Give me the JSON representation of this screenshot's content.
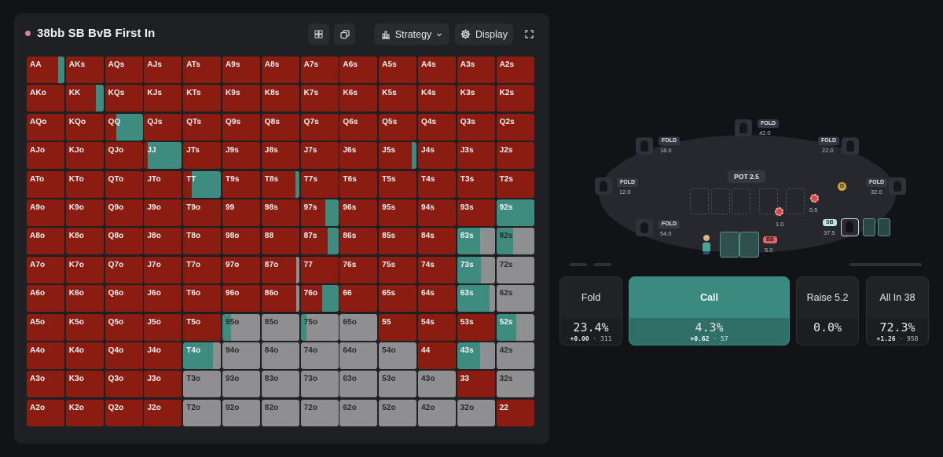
{
  "header": {
    "title": "38bb SB BvB First In",
    "strategy_label": "Strategy",
    "display_label": "Display"
  },
  "colors": {
    "fold": "#8b1c12",
    "call": "#3e8c7f",
    "raise": "#8f8f91",
    "allin": "#8b1c12"
  },
  "grid": {
    "labels": [
      [
        "AA",
        "AKs",
        "AQs",
        "AJs",
        "ATs",
        "A9s",
        "A8s",
        "A7s",
        "A6s",
        "A5s",
        "A4s",
        "A3s",
        "A2s"
      ],
      [
        "AKo",
        "KK",
        "KQs",
        "KJs",
        "KTs",
        "K9s",
        "K8s",
        "K7s",
        "K6s",
        "K5s",
        "K4s",
        "K3s",
        "K2s"
      ],
      [
        "AQo",
        "KQo",
        "QQ",
        "QJs",
        "QTs",
        "Q9s",
        "Q8s",
        "Q7s",
        "Q6s",
        "Q5s",
        "Q4s",
        "Q3s",
        "Q2s"
      ],
      [
        "AJo",
        "KJo",
        "QJo",
        "JJ",
        "JTs",
        "J9s",
        "J8s",
        "J7s",
        "J6s",
        "J5s",
        "J4s",
        "J3s",
        "J2s"
      ],
      [
        "ATo",
        "KTo",
        "QTo",
        "JTo",
        "TT",
        "T9s",
        "T8s",
        "T7s",
        "T6s",
        "T5s",
        "T4s",
        "T3s",
        "T2s"
      ],
      [
        "A9o",
        "K9o",
        "Q9o",
        "J9o",
        "T9o",
        "99",
        "98s",
        "97s",
        "96s",
        "95s",
        "94s",
        "93s",
        "92s"
      ],
      [
        "A8o",
        "K8o",
        "Q8o",
        "J8o",
        "T8o",
        "98o",
        "88",
        "87s",
        "86s",
        "85s",
        "84s",
        "83s",
        "82s"
      ],
      [
        "A7o",
        "K7o",
        "Q7o",
        "J7o",
        "T7o",
        "97o",
        "87o",
        "77",
        "76s",
        "75s",
        "74s",
        "73s",
        "72s"
      ],
      [
        "A6o",
        "K6o",
        "Q6o",
        "J6o",
        "T6o",
        "96o",
        "86o",
        "76o",
        "66",
        "65s",
        "64s",
        "63s",
        "62s"
      ],
      [
        "A5o",
        "K5o",
        "Q5o",
        "J5o",
        "T5o",
        "95o",
        "85o",
        "75o",
        "65o",
        "55",
        "54s",
        "53s",
        "52s"
      ],
      [
        "A4o",
        "K4o",
        "Q4o",
        "J4o",
        "T4o",
        "94o",
        "84o",
        "74o",
        "64o",
        "54o",
        "44",
        "43s",
        "42s"
      ],
      [
        "A3o",
        "K3o",
        "Q3o",
        "J3o",
        "T3o",
        "93o",
        "83o",
        "73o",
        "63o",
        "53o",
        "43o",
        "33",
        "32s"
      ],
      [
        "A2o",
        "K2o",
        "Q2o",
        "J2o",
        "T2o",
        "92o",
        "82o",
        "72o",
        "62o",
        "52o",
        "42o",
        "32o",
        "22"
      ]
    ],
    "mixes": {
      "AA": {
        "allin": 0.84,
        "call": 0.16
      },
      "KK": {
        "allin": 0.8,
        "call": 0.2
      },
      "QQ": {
        "allin": 0.3,
        "call": 0.7
      },
      "JJ": {
        "allin": 0.1,
        "call": 0.9
      },
      "TT": {
        "allin": 0.22,
        "call": 0.78
      },
      "99": {
        "allin": 1.0
      },
      "88": {
        "allin": 1.0
      },
      "77": {
        "allin": 1.0
      },
      "66": {
        "allin": 1.0
      },
      "55": {
        "allin": 1.0
      },
      "44": {
        "allin": 1.0
      },
      "33": {
        "allin": 1.0
      },
      "22": {
        "allin": 1.0
      },
      "J5s": {
        "allin": 0.88,
        "call": 0.12
      },
      "T8s": {
        "allin": 0.9,
        "call": 0.1
      },
      "97s": {
        "allin": 0.66,
        "call": 0.34
      },
      "92s": {
        "call": 1.0
      },
      "87s": {
        "allin": 0.72,
        "call": 0.28
      },
      "83s": {
        "call": 0.6,
        "raise": 0.4
      },
      "82s": {
        "call": 0.45,
        "raise": 0.55
      },
      "87o": {
        "allin": 0.92,
        "raise": 0.08
      },
      "73s": {
        "call": 0.62,
        "raise": 0.38
      },
      "72s": {
        "raise": 1.0
      },
      "86o": {
        "allin": 0.92,
        "raise": 0.08
      },
      "76o": {
        "allin": 0.58,
        "call": 0.42
      },
      "63s": {
        "call": 0.85,
        "raise": 0.15
      },
      "62s": {
        "raise": 1.0
      },
      "95o": {
        "call": 0.22,
        "raise": 0.78
      },
      "85o": {
        "raise": 1.0
      },
      "75o": {
        "call": 0.16,
        "raise": 0.84
      },
      "65o": {
        "raise": 1.0
      },
      "52s": {
        "call": 0.52,
        "raise": 0.48
      },
      "T4o": {
        "call": 0.78,
        "raise": 0.22
      },
      "94o": {
        "raise": 1.0
      },
      "84o": {
        "raise": 1.0
      },
      "74o": {
        "raise": 1.0
      },
      "64o": {
        "raise": 1.0
      },
      "54o": {
        "raise": 1.0
      },
      "43s": {
        "call": 0.6,
        "raise": 0.4
      },
      "42s": {
        "raise": 1.0
      },
      "T3o": {
        "raise": 1.0
      },
      "93o": {
        "raise": 1.0
      },
      "83o": {
        "raise": 1.0
      },
      "73o": {
        "raise": 1.0
      },
      "63o": {
        "raise": 1.0
      },
      "53o": {
        "raise": 1.0
      },
      "43o": {
        "raise": 1.0
      },
      "32s": {
        "raise": 1.0
      },
      "T2o": {
        "raise": 1.0
      },
      "92o": {
        "raise": 1.0
      },
      "82o": {
        "raise": 1.0
      },
      "72o": {
        "raise": 1.0
      },
      "62o": {
        "raise": 1.0
      },
      "52o": {
        "raise": 1.0
      },
      "42o": {
        "raise": 1.0
      },
      "32o": {
        "raise": 1.0
      }
    }
  },
  "table": {
    "pot_label": "POT 2.5",
    "seats": [
      {
        "name": "fold-seat-1",
        "tag": "FOLD",
        "stack": "18.0"
      },
      {
        "name": "fold-seat-2",
        "tag": "FOLD",
        "stack": "42.0"
      },
      {
        "name": "fold-seat-3",
        "tag": "FOLD",
        "stack": "22.0"
      },
      {
        "name": "fold-seat-4",
        "tag": "FOLD",
        "stack": "12.0"
      },
      {
        "name": "fold-seat-5",
        "tag": "FOLD",
        "stack": "32.0"
      },
      {
        "name": "fold-seat-6",
        "tag": "FOLD",
        "stack": "54.0"
      }
    ],
    "bb_badge": "BB",
    "bb_stack": "5.0",
    "sb_badge": "SB",
    "sb_stack": "37.5",
    "bet_sb": "1.0",
    "bet_bb": "0.5",
    "dealer": "D"
  },
  "actions": [
    {
      "name": "Fold",
      "freq": "23.4%",
      "ev": "+0.00",
      "combos": "311"
    },
    {
      "name": "Call",
      "freq": "4.3%",
      "ev": "+0.62",
      "combos": "57"
    },
    {
      "name": "Raise 5.2",
      "freq": "0.0%",
      "ev": "",
      "combos": ""
    },
    {
      "name": "All In 38",
      "freq": "72.3%",
      "ev": "+1.26",
      "combos": "958"
    }
  ]
}
